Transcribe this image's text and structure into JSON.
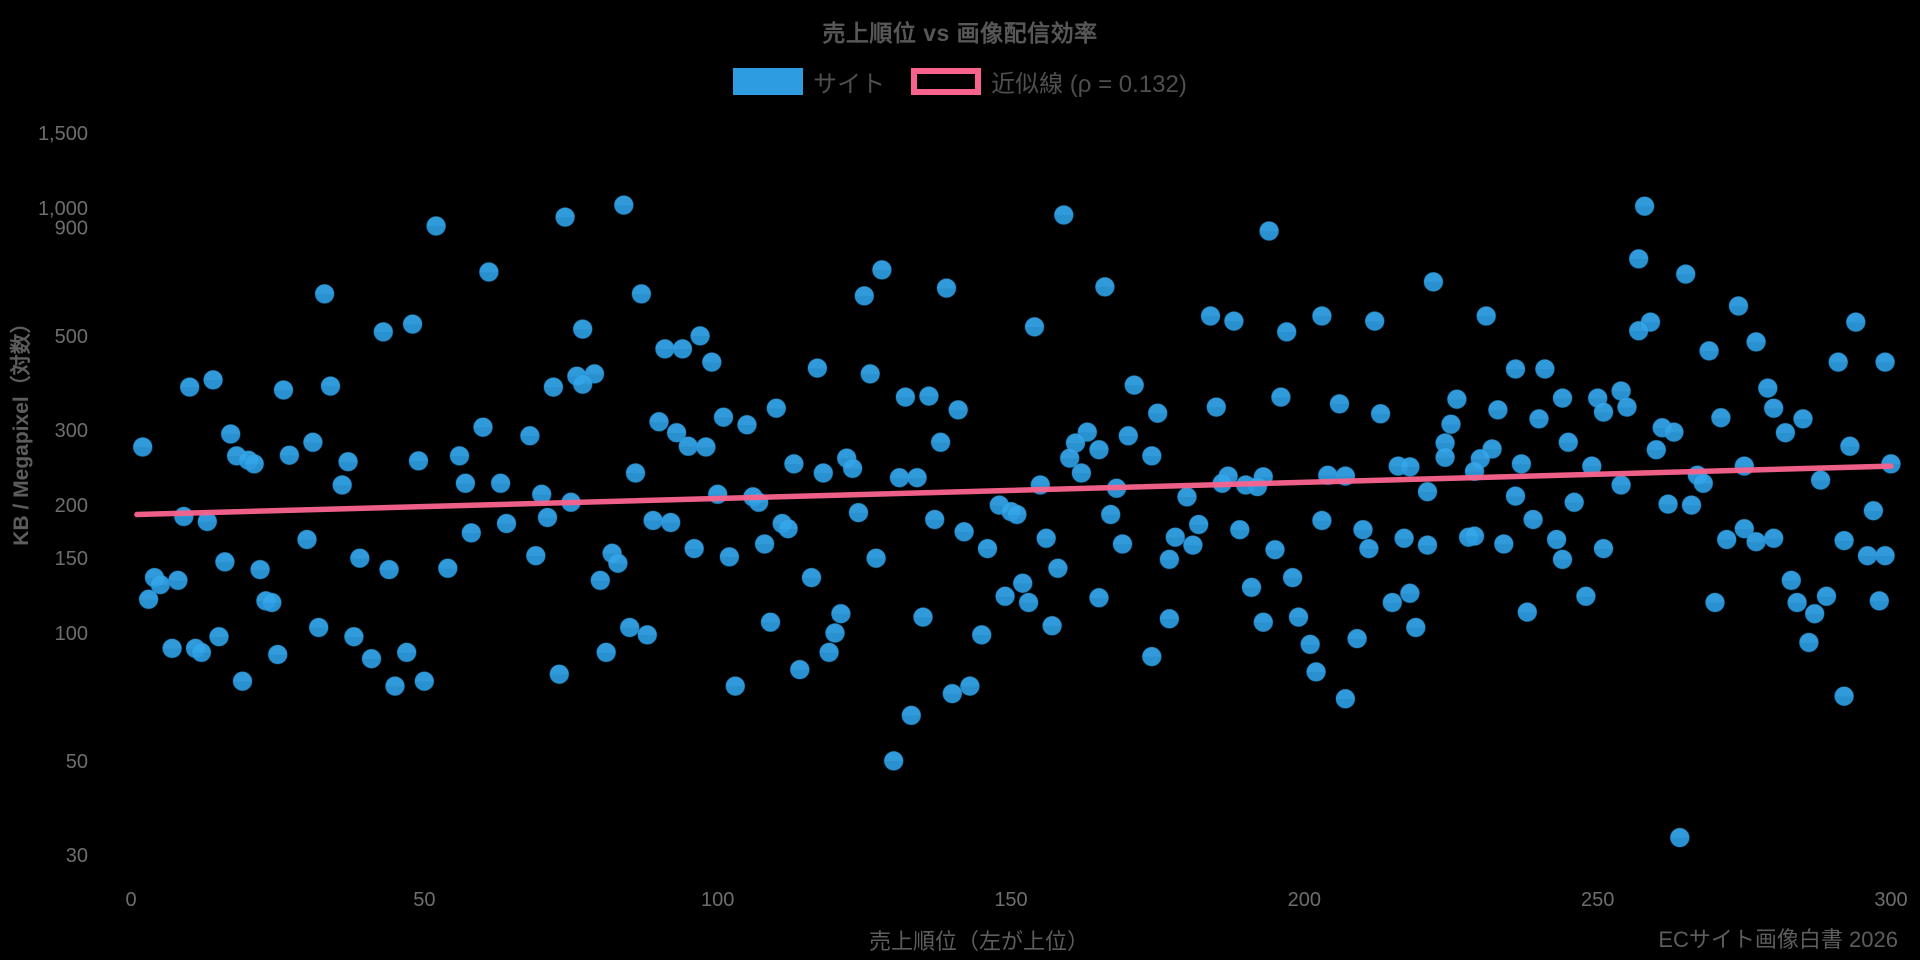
{
  "page": {
    "background": "#000000"
  },
  "colors": {
    "point_fill": "#2D9CE1",
    "point_fill_top": "#35A6EA",
    "point_stroke": "#1F85C4",
    "trend": "#F8638D",
    "tick_text": "#6e6e6e",
    "label_text": "#5d5d5d",
    "title_text": "#575757",
    "legend_text": "#4f4f4f",
    "background": "#000000"
  },
  "chart_data": {
    "type": "scatter",
    "title": "売上順位 vs 画像配信効率",
    "xlabel": "売上順位（左が上位）",
    "ylabel": "KB / Megapixel（対数）",
    "source_note": "ECサイト画像白書 2026",
    "legend": {
      "position": "top",
      "items": [
        {
          "name": "サイト",
          "type": "point"
        },
        {
          "name": "近似線 (ρ = 0.132)",
          "type": "line"
        }
      ]
    },
    "x_axis": {
      "ticks": [
        0,
        50,
        100,
        150,
        200,
        250,
        300
      ],
      "range": [
        0,
        302
      ],
      "grid": false
    },
    "y_axis": {
      "scale": "log",
      "ticks": [
        {
          "v": 30,
          "label": "30"
        },
        {
          "v": 50,
          "label": "50"
        },
        {
          "v": 100,
          "label": "100"
        },
        {
          "v": 150,
          "label": "150"
        },
        {
          "v": 200,
          "label": "200"
        },
        {
          "v": 300,
          "label": "300"
        },
        {
          "v": 500,
          "label": "500"
        },
        {
          "v": 900,
          "label": "900"
        },
        {
          "v": 1000,
          "label": "1,000"
        },
        {
          "v": 1500,
          "label": "1,500"
        }
      ],
      "range": [
        28,
        1900
      ],
      "grid": false
    },
    "trendline": {
      "rho": 0.132,
      "x": [
        1,
        300
      ],
      "y": [
        190,
        247
      ]
    },
    "series": [
      {
        "name": "サイト",
        "points": [
          [
            52,
            907
          ],
          [
            61,
            707
          ],
          [
            33,
            628
          ],
          [
            43,
            511
          ],
          [
            48,
            533
          ],
          [
            10,
            379
          ],
          [
            14,
            394
          ],
          [
            26,
            373
          ],
          [
            34,
            381
          ],
          [
            72,
            379
          ],
          [
            60,
            305
          ],
          [
            68,
            291
          ],
          [
            2,
            274
          ],
          [
            17,
            294
          ],
          [
            18,
            261
          ],
          [
            20,
            255
          ],
          [
            21,
            250
          ],
          [
            27,
            262
          ],
          [
            31,
            281
          ],
          [
            37,
            253
          ],
          [
            49,
            254
          ],
          [
            56,
            261
          ],
          [
            74,
            952
          ],
          [
            84,
            1016
          ],
          [
            87,
            628
          ],
          [
            128,
            715
          ],
          [
            125,
            621
          ],
          [
            139,
            648
          ],
          [
            77,
            519
          ],
          [
            97,
            500
          ],
          [
            91,
            466
          ],
          [
            94,
            466
          ],
          [
            99,
            434
          ],
          [
            76,
            402
          ],
          [
            79,
            407
          ],
          [
            77,
            385
          ],
          [
            117,
            420
          ],
          [
            126,
            407
          ],
          [
            132,
            359
          ],
          [
            136,
            361
          ],
          [
            141,
            335
          ],
          [
            110,
            338
          ],
          [
            101,
            322
          ],
          [
            105,
            309
          ],
          [
            90,
            314
          ],
          [
            93,
            296
          ],
          [
            95,
            275
          ],
          [
            98,
            274
          ],
          [
            138,
            281
          ],
          [
            113,
            250
          ],
          [
            122,
            258
          ],
          [
            123,
            244
          ],
          [
            118,
            238
          ],
          [
            86,
            238
          ],
          [
            159,
            963
          ],
          [
            194,
            883
          ],
          [
            166,
            652
          ],
          [
            222,
            670
          ],
          [
            154,
            525
          ],
          [
            184,
            557
          ],
          [
            188,
            542
          ],
          [
            197,
            511
          ],
          [
            203,
            557
          ],
          [
            212,
            542
          ],
          [
            171,
            383
          ],
          [
            175,
            329
          ],
          [
            170,
            291
          ],
          [
            163,
            297
          ],
          [
            161,
            280
          ],
          [
            160,
            258
          ],
          [
            165,
            270
          ],
          [
            162,
            238
          ],
          [
            185,
            340
          ],
          [
            196,
            359
          ],
          [
            206,
            346
          ],
          [
            213,
            328
          ],
          [
            174,
            261
          ],
          [
            226,
            355
          ],
          [
            225,
            310
          ],
          [
            224,
            280
          ],
          [
            224,
            259
          ],
          [
            216,
            247
          ],
          [
            218,
            246
          ],
          [
            204,
            235
          ],
          [
            258,
            1010
          ],
          [
            257,
            759
          ],
          [
            265,
            699
          ],
          [
            274,
            588
          ],
          [
            231,
            557
          ],
          [
            259,
            539
          ],
          [
            257,
            514
          ],
          [
            277,
            484
          ],
          [
            269,
            461
          ],
          [
            294,
            539
          ],
          [
            236,
            418
          ],
          [
            241,
            418
          ],
          [
            291,
            434
          ],
          [
            299,
            434
          ],
          [
            244,
            357
          ],
          [
            233,
            335
          ],
          [
            240,
            319
          ],
          [
            250,
            357
          ],
          [
            251,
            331
          ],
          [
            254,
            371
          ],
          [
            255,
            340
          ],
          [
            261,
            304
          ],
          [
            263,
            297
          ],
          [
            271,
            321
          ],
          [
            279,
            377
          ],
          [
            280,
            338
          ],
          [
            282,
            296
          ],
          [
            285,
            319
          ],
          [
            245,
            281
          ],
          [
            260,
            270
          ],
          [
            232,
            271
          ],
          [
            230,
            257
          ],
          [
            229,
            240
          ],
          [
            237,
            250
          ],
          [
            293,
            275
          ],
          [
            249,
            247
          ],
          [
            275,
            247
          ],
          [
            300,
            250
          ],
          [
            9,
            188
          ],
          [
            13,
            183
          ],
          [
            36,
            223
          ],
          [
            30,
            166
          ],
          [
            16,
            147
          ],
          [
            22,
            141
          ],
          [
            4,
            135
          ],
          [
            5,
            130
          ],
          [
            8,
            133
          ],
          [
            3,
            120
          ],
          [
            23,
            119
          ],
          [
            24,
            118
          ],
          [
            15,
            98
          ],
          [
            7,
            92
          ],
          [
            11,
            92
          ],
          [
            12,
            90
          ],
          [
            25,
            89
          ],
          [
            19,
            77
          ],
          [
            32,
            103
          ],
          [
            38,
            98
          ],
          [
            41,
            87
          ],
          [
            45,
            75
          ],
          [
            47,
            90
          ],
          [
            50,
            77
          ],
          [
            57,
            225
          ],
          [
            63,
            225
          ],
          [
            70,
            212
          ],
          [
            58,
            172
          ],
          [
            64,
            181
          ],
          [
            39,
            150
          ],
          [
            54,
            142
          ],
          [
            44,
            141
          ],
          [
            69,
            152
          ],
          [
            131,
            232
          ],
          [
            134,
            232
          ],
          [
            75,
            203
          ],
          [
            71,
            187
          ],
          [
            100,
            212
          ],
          [
            106,
            209
          ],
          [
            107,
            203
          ],
          [
            89,
            184
          ],
          [
            92,
            182
          ],
          [
            111,
            181
          ],
          [
            112,
            176
          ],
          [
            108,
            162
          ],
          [
            96,
            158
          ],
          [
            102,
            151
          ],
          [
            124,
            192
          ],
          [
            127,
            150
          ],
          [
            137,
            185
          ],
          [
            142,
            173
          ],
          [
            146,
            158
          ],
          [
            148,
            200
          ],
          [
            150,
            193
          ],
          [
            82,
            154
          ],
          [
            83,
            146
          ],
          [
            80,
            133
          ],
          [
            116,
            135
          ],
          [
            109,
            106
          ],
          [
            121,
            111
          ],
          [
            120,
            100
          ],
          [
            119,
            90
          ],
          [
            85,
            103
          ],
          [
            88,
            99
          ],
          [
            81,
            90
          ],
          [
            114,
            82
          ],
          [
            73,
            80
          ],
          [
            103,
            75
          ],
          [
            135,
            109
          ],
          [
            145,
            99
          ],
          [
            140,
            72
          ],
          [
            143,
            75
          ],
          [
            133,
            64
          ],
          [
            130,
            50
          ],
          [
            187,
            234
          ],
          [
            193,
            233
          ],
          [
            207,
            234
          ],
          [
            155,
            223
          ],
          [
            168,
            219
          ],
          [
            180,
            209
          ],
          [
            186,
            225
          ],
          [
            190,
            223
          ],
          [
            192,
            221
          ],
          [
            221,
            215
          ],
          [
            151,
            190
          ],
          [
            156,
            167
          ],
          [
            167,
            190
          ],
          [
            169,
            162
          ],
          [
            158,
            142
          ],
          [
            152,
            131
          ],
          [
            149,
            122
          ],
          [
            153,
            118
          ],
          [
            178,
            168
          ],
          [
            181,
            161
          ],
          [
            182,
            180
          ],
          [
            177,
            149
          ],
          [
            189,
            175
          ],
          [
            195,
            157
          ],
          [
            198,
            135
          ],
          [
            191,
            128
          ],
          [
            193,
            106
          ],
          [
            199,
            109
          ],
          [
            201,
            94
          ],
          [
            202,
            81
          ],
          [
            207,
            70
          ],
          [
            209,
            97
          ],
          [
            177,
            108
          ],
          [
            174,
            88
          ],
          [
            165,
            121
          ],
          [
            157,
            104
          ],
          [
            203,
            184
          ],
          [
            210,
            175
          ],
          [
            211,
            158
          ],
          [
            217,
            167
          ],
          [
            218,
            124
          ],
          [
            215,
            118
          ],
          [
            221,
            161
          ],
          [
            219,
            103
          ],
          [
            228,
            168
          ],
          [
            267,
            235
          ],
          [
            268,
            225
          ],
          [
            288,
            229
          ],
          [
            254,
            223
          ],
          [
            236,
            210
          ],
          [
            246,
            203
          ],
          [
            239,
            185
          ],
          [
            229,
            169
          ],
          [
            234,
            162
          ],
          [
            243,
            166
          ],
          [
            244,
            149
          ],
          [
            251,
            158
          ],
          [
            248,
            122
          ],
          [
            238,
            112
          ],
          [
            262,
            201
          ],
          [
            266,
            200
          ],
          [
            270,
            118
          ],
          [
            272,
            166
          ],
          [
            275,
            176
          ],
          [
            277,
            164
          ],
          [
            280,
            167
          ],
          [
            283,
            133
          ],
          [
            284,
            118
          ],
          [
            286,
            95
          ],
          [
            287,
            111
          ],
          [
            289,
            122
          ],
          [
            292,
            165
          ],
          [
            292,
            71
          ],
          [
            296,
            152
          ],
          [
            297,
            194
          ],
          [
            299,
            152
          ],
          [
            298,
            119
          ],
          [
            264,
            33
          ]
        ]
      }
    ]
  }
}
